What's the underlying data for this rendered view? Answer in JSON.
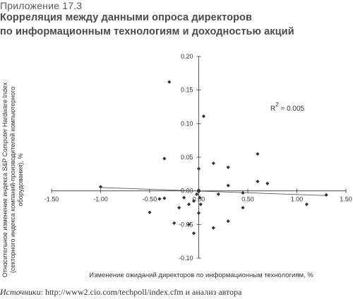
{
  "header": {
    "appendix": "Приложение 17.3",
    "title_line1": "Корреляция между данными опроса директоров",
    "title_line2": "по информационным технологиям и доходностью акций"
  },
  "footer": {
    "source_label": "Источники",
    "source_text": ": http://www2.cio.com/techpoll/index.cfm и анализ автора"
  },
  "chart_data": {
    "type": "scatter",
    "xlabel": "Изменение ожиданий директоров по информационным технологиям, %",
    "ylabel_lines": [
      "Относительное изменение индекса S&P Computer Hardware Index",
      "(секторного индекса компаний-производителей компьютерного",
      "оборудования), %"
    ],
    "annotation": {
      "base": "R",
      "sup": "2",
      "rest": " = 0.005"
    },
    "xlim": [
      -1.5,
      1.5
    ],
    "ylim": [
      -0.1,
      0.2
    ],
    "x_ticks": [
      -1.5,
      -1.0,
      -0.5,
      0.0,
      0.5,
      1.0
    ],
    "x_tick_labels": [
      "-1.50",
      "-1.00",
      "-0.50",
      "0.00",
      "0.50",
      "1.00",
      "1.50"
    ],
    "x_tick_values": [
      -1.5,
      -1.0,
      -0.5,
      0.0,
      0.5,
      1.0,
      1.5
    ],
    "y_tick_labels": [
      "0.20",
      "0.15",
      "0.10",
      "0.05",
      "0.00",
      "-0.05",
      "-0.10"
    ],
    "y_tick_values": [
      0.2,
      0.15,
      0.1,
      0.05,
      0.0,
      -0.05,
      -0.1
    ],
    "points": [
      [
        -0.3,
        0.162
      ],
      [
        0.05,
        0.111
      ],
      [
        -0.35,
        0.048
      ],
      [
        0.0,
        0.033
      ],
      [
        0.15,
        0.041
      ],
      [
        0.3,
        0.035
      ],
      [
        0.6,
        0.055
      ],
      [
        0.6,
        0.014
      ],
      [
        0.7,
        0.011
      ],
      [
        0.3,
        0.008
      ],
      [
        -1.0,
        0.006
      ],
      [
        0.0,
        0.001
      ],
      [
        0.0,
        -0.001
      ],
      [
        0.45,
        -0.003
      ],
      [
        1.3,
        -0.006
      ],
      [
        0.2,
        -0.005
      ],
      [
        -0.35,
        -0.011
      ],
      [
        -0.4,
        -0.012
      ],
      [
        -0.15,
        -0.01
      ],
      [
        -0.05,
        -0.015
      ],
      [
        0.02,
        -0.02
      ],
      [
        -0.1,
        -0.02
      ],
      [
        -0.2,
        -0.025
      ],
      [
        1.1,
        -0.02
      ],
      [
        0.45,
        -0.025
      ],
      [
        -0.5,
        -0.032
      ],
      [
        0.0,
        -0.033
      ],
      [
        -0.25,
        -0.048
      ],
      [
        -0.1,
        -0.05
      ],
      [
        0.3,
        -0.045
      ],
      [
        0.15,
        -0.055
      ],
      [
        -0.05,
        -0.063
      ],
      [
        0.01,
        -0.01
      ],
      [
        -0.02,
        -0.005
      ]
    ],
    "trendline": {
      "x": [
        -1.0,
        1.3
      ],
      "y": [
        0.005,
        -0.007
      ]
    },
    "grid": false,
    "colors": {
      "marker": "#333333",
      "axis": "#333333",
      "text": "#333333"
    }
  }
}
